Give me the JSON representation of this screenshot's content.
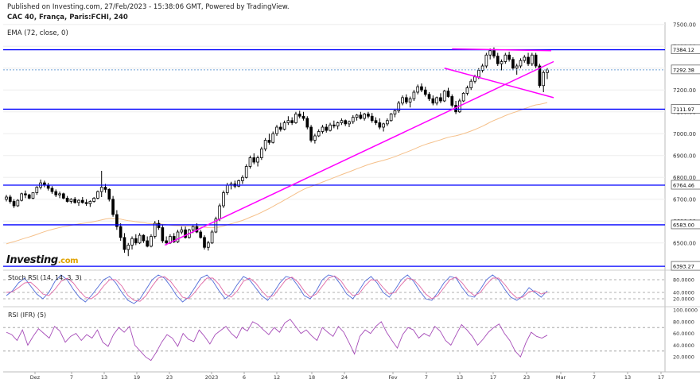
{
  "header": {
    "published": "Published on Investing.com, 27/Feb/2023 - 15:38:06 GMT, Powered by TradingView.",
    "title": "CAC 40, França, Paris:FCHI, 240",
    "ema": "EMA (72, close, 0)"
  },
  "logo": {
    "name": "Investing",
    "suffix": ".com"
  },
  "colors": {
    "up": "#ffffff",
    "down": "#000000",
    "hline": "#0000ff",
    "trend": "#ff00ff",
    "ema": "#f5c08a",
    "stoch_k": "#4f6bd8",
    "stoch_d": "#e066a3",
    "rsi": "#a64cb8",
    "dotted": "#6fa0d8"
  },
  "chart_data": [
    {
      "type": "candlestick",
      "title": "CAC 40, França, Paris:FCHI, 240",
      "ylim": [
        6390,
        7510
      ],
      "y_ticks": [
        "7500.00",
        "7400.00",
        "7300.00",
        "7200.00",
        "7100.00",
        "7000.00",
        "6900.00",
        "6800.00",
        "6700.00",
        "6600.00",
        "6500.00"
      ],
      "x_labels": [
        "Dez",
        "7",
        "13",
        "19",
        "23",
        "2023",
        "6",
        "12",
        "18",
        "24",
        "Fev",
        "7",
        "13",
        "17",
        "23",
        "Mar",
        "7",
        "13",
        "17"
      ],
      "price_lines": [
        "7384.12",
        "7292.38",
        "7111.97",
        "6764.46",
        "6583.00",
        "6393.27"
      ],
      "ohlc": [
        [
          6700,
          6720,
          6690,
          6710
        ],
        [
          6710,
          6720,
          6680,
          6690
        ],
        [
          6690,
          6700,
          6660,
          6670
        ],
        [
          6670,
          6700,
          6665,
          6695
        ],
        [
          6695,
          6730,
          6690,
          6725
        ],
        [
          6725,
          6740,
          6705,
          6720
        ],
        [
          6720,
          6725,
          6700,
          6705
        ],
        [
          6705,
          6730,
          6700,
          6730
        ],
        [
          6730,
          6760,
          6720,
          6755
        ],
        [
          6755,
          6790,
          6745,
          6775
        ],
        [
          6775,
          6785,
          6755,
          6765
        ],
        [
          6765,
          6775,
          6740,
          6750
        ],
        [
          6750,
          6760,
          6725,
          6735
        ],
        [
          6735,
          6745,
          6710,
          6720
        ],
        [
          6720,
          6735,
          6705,
          6725
        ],
        [
          6725,
          6730,
          6700,
          6705
        ],
        [
          6705,
          6715,
          6685,
          6690
        ],
        [
          6690,
          6705,
          6680,
          6700
        ],
        [
          6700,
          6710,
          6680,
          6685
        ],
        [
          6685,
          6700,
          6670,
          6695
        ],
        [
          6695,
          6710,
          6680,
          6685
        ],
        [
          6685,
          6700,
          6670,
          6680
        ],
        [
          6680,
          6695,
          6665,
          6690
        ],
        [
          6690,
          6710,
          6685,
          6705
        ],
        [
          6705,
          6740,
          6700,
          6735
        ],
        [
          6735,
          6830,
          6710,
          6755
        ],
        [
          6755,
          6770,
          6730,
          6745
        ],
        [
          6745,
          6750,
          6690,
          6700
        ],
        [
          6700,
          6715,
          6620,
          6630
        ],
        [
          6630,
          6650,
          6560,
          6575
        ],
        [
          6575,
          6590,
          6510,
          6525
        ],
        [
          6525,
          6545,
          6455,
          6470
        ],
        [
          6470,
          6500,
          6440,
          6490
        ],
        [
          6490,
          6530,
          6470,
          6520
        ],
        [
          6520,
          6540,
          6490,
          6500
        ],
        [
          6500,
          6545,
          6495,
          6535
        ],
        [
          6535,
          6540,
          6500,
          6510
        ],
        [
          6510,
          6530,
          6480,
          6485
        ],
        [
          6485,
          6540,
          6480,
          6530
        ],
        [
          6530,
          6600,
          6520,
          6590
        ],
        [
          6590,
          6605,
          6560,
          6570
        ],
        [
          6570,
          6585,
          6500,
          6510
        ],
        [
          6510,
          6530,
          6490,
          6500
        ],
        [
          6500,
          6540,
          6495,
          6530
        ],
        [
          6530,
          6545,
          6500,
          6505
        ],
        [
          6505,
          6560,
          6500,
          6550
        ],
        [
          6550,
          6575,
          6540,
          6560
        ],
        [
          6560,
          6575,
          6520,
          6525
        ],
        [
          6525,
          6565,
          6520,
          6560
        ],
        [
          6560,
          6580,
          6545,
          6575
        ],
        [
          6575,
          6590,
          6545,
          6550
        ],
        [
          6550,
          6560,
          6520,
          6525
        ],
        [
          6525,
          6535,
          6470,
          6480
        ],
        [
          6480,
          6510,
          6465,
          6500
        ],
        [
          6500,
          6560,
          6495,
          6550
        ],
        [
          6550,
          6620,
          6545,
          6610
        ],
        [
          6610,
          6680,
          6600,
          6670
        ],
        [
          6670,
          6740,
          6660,
          6730
        ],
        [
          6730,
          6775,
          6720,
          6765
        ],
        [
          6765,
          6780,
          6745,
          6770
        ],
        [
          6770,
          6785,
          6750,
          6760
        ],
        [
          6760,
          6790,
          6755,
          6785
        ],
        [
          6785,
          6810,
          6770,
          6800
        ],
        [
          6800,
          6860,
          6795,
          6850
        ],
        [
          6850,
          6900,
          6840,
          6890
        ],
        [
          6890,
          6910,
          6860,
          6870
        ],
        [
          6870,
          6900,
          6850,
          6890
        ],
        [
          6890,
          6940,
          6880,
          6930
        ],
        [
          6930,
          6980,
          6920,
          6970
        ],
        [
          6970,
          7000,
          6950,
          6960
        ],
        [
          6960,
          7010,
          6955,
          7000
        ],
        [
          7000,
          7040,
          6990,
          7030
        ],
        [
          7030,
          7050,
          7010,
          7020
        ],
        [
          7020,
          7060,
          7015,
          7050
        ],
        [
          7050,
          7080,
          7040,
          7060
        ],
        [
          7060,
          7075,
          7040,
          7050
        ],
        [
          7050,
          7100,
          7045,
          7090
        ],
        [
          7090,
          7105,
          7070,
          7080
        ],
        [
          7080,
          7100,
          7060,
          7070
        ],
        [
          7070,
          7080,
          7020,
          7030
        ],
        [
          7030,
          7040,
          6960,
          6970
        ],
        [
          6970,
          7000,
          6955,
          6990
        ],
        [
          6990,
          7020,
          6985,
          7010
        ],
        [
          7010,
          7040,
          7000,
          7030
        ],
        [
          7030,
          7045,
          7005,
          7015
        ],
        [
          7015,
          7050,
          7010,
          7040
        ],
        [
          7040,
          7060,
          7025,
          7035
        ],
        [
          7035,
          7055,
          7020,
          7050
        ],
        [
          7050,
          7070,
          7040,
          7060
        ],
        [
          7060,
          7065,
          7035,
          7045
        ],
        [
          7045,
          7060,
          7030,
          7055
        ],
        [
          7055,
          7085,
          7045,
          7075
        ],
        [
          7075,
          7090,
          7060,
          7085
        ],
        [
          7085,
          7100,
          7065,
          7070
        ],
        [
          7070,
          7095,
          7060,
          7090
        ],
        [
          7090,
          7100,
          7070,
          7080
        ],
        [
          7080,
          7095,
          7050,
          7060
        ],
        [
          7060,
          7075,
          7040,
          7050
        ],
        [
          7050,
          7070,
          7020,
          7030
        ],
        [
          7030,
          7050,
          7010,
          7045
        ],
        [
          7045,
          7070,
          7035,
          7060
        ],
        [
          7060,
          7095,
          7055,
          7090
        ],
        [
          7090,
          7110,
          7075,
          7105
        ],
        [
          7105,
          7150,
          7095,
          7140
        ],
        [
          7140,
          7175,
          7130,
          7165
        ],
        [
          7165,
          7180,
          7135,
          7145
        ],
        [
          7145,
          7170,
          7120,
          7160
        ],
        [
          7160,
          7200,
          7150,
          7190
        ],
        [
          7190,
          7225,
          7180,
          7215
        ],
        [
          7215,
          7230,
          7190,
          7200
        ],
        [
          7200,
          7215,
          7170,
          7180
        ],
        [
          7180,
          7190,
          7150,
          7160
        ],
        [
          7160,
          7175,
          7130,
          7140
        ],
        [
          7140,
          7170,
          7130,
          7165
        ],
        [
          7165,
          7185,
          7140,
          7150
        ],
        [
          7150,
          7200,
          7145,
          7195
        ],
        [
          7195,
          7210,
          7165,
          7170
        ],
        [
          7170,
          7180,
          7120,
          7130
        ],
        [
          7130,
          7150,
          7090,
          7100
        ],
        [
          7100,
          7160,
          7095,
          7150
        ],
        [
          7150,
          7190,
          7145,
          7185
        ],
        [
          7185,
          7220,
          7175,
          7210
        ],
        [
          7210,
          7250,
          7200,
          7240
        ],
        [
          7240,
          7270,
          7230,
          7260
        ],
        [
          7260,
          7300,
          7250,
          7290
        ],
        [
          7290,
          7320,
          7280,
          7310
        ],
        [
          7310,
          7370,
          7300,
          7360
        ],
        [
          7360,
          7390,
          7340,
          7380
        ],
        [
          7380,
          7395,
          7345,
          7355
        ],
        [
          7355,
          7370,
          7310,
          7320
        ],
        [
          7320,
          7340,
          7290,
          7330
        ],
        [
          7330,
          7370,
          7320,
          7360
        ],
        [
          7360,
          7375,
          7330,
          7340
        ],
        [
          7340,
          7350,
          7290,
          7300
        ],
        [
          7300,
          7320,
          7270,
          7310
        ],
        [
          7310,
          7345,
          7300,
          7335
        ],
        [
          7335,
          7360,
          7325,
          7350
        ],
        [
          7350,
          7370,
          7310,
          7320
        ],
        [
          7320,
          7370,
          7310,
          7360
        ],
        [
          7360,
          7370,
          7300,
          7310
        ],
        [
          7310,
          7320,
          7210,
          7220
        ],
        [
          7220,
          7290,
          7190,
          7280
        ],
        [
          7280,
          7300,
          7250,
          7292
        ]
      ],
      "ema": [
        6490,
        6798.6
      ]
    },
    {
      "type": "line",
      "title": "Stoch RSI (14, 14, 3, 3)",
      "ylim": [
        0,
        100
      ],
      "y_ticks": [
        "80.0000",
        "40.0000",
        "20.0000"
      ],
      "series": [
        {
          "name": "%K",
          "values": [
            30,
            45,
            70,
            85,
            60,
            35,
            20,
            40,
            75,
            95,
            80,
            50,
            25,
            10,
            30,
            55,
            80,
            90,
            70,
            40,
            15,
            5,
            20,
            50,
            80,
            95,
            85,
            60,
            30,
            10,
            25,
            55,
            85,
            95,
            75,
            45,
            20,
            35,
            65,
            90,
            80,
            55,
            30,
            15,
            40,
            70,
            90,
            85,
            60,
            30,
            20,
            45,
            80,
            95,
            90,
            65,
            35,
            20,
            45,
            75,
            90,
            70,
            40,
            25,
            50,
            80,
            95,
            75,
            45,
            20,
            15,
            40,
            70,
            90,
            85,
            55,
            30,
            25,
            50,
            80,
            95,
            80,
            50,
            25,
            15,
            30,
            55,
            40,
            25,
            45
          ]
        },
        {
          "name": "%D",
          "values": [
            40,
            42,
            55,
            70,
            72,
            55,
            35,
            30,
            50,
            75,
            85,
            70,
            45,
            25,
            20,
            35,
            60,
            80,
            80,
            60,
            30,
            15,
            12,
            30,
            60,
            85,
            90,
            75,
            50,
            25,
            20,
            40,
            65,
            85,
            85,
            65,
            35,
            25,
            45,
            75,
            85,
            70,
            45,
            25,
            30,
            55,
            80,
            88,
            72,
            45,
            25,
            35,
            60,
            85,
            92,
            78,
            50,
            30,
            35,
            60,
            80,
            78,
            55,
            35,
            40,
            65,
            85,
            80,
            60,
            35,
            20,
            30,
            55,
            80,
            88,
            70,
            45,
            30,
            40,
            65,
            85,
            85,
            65,
            40,
            22,
            25,
            42,
            45,
            35,
            40
          ]
        }
      ]
    },
    {
      "type": "line",
      "title": "RSI (IFR) (5)",
      "ylim": [
        0,
        100
      ],
      "y_ticks": [
        "100.0000",
        "80.0000",
        "60.0000",
        "40.0000",
        "20.0000"
      ],
      "series": [
        {
          "values": [
            62,
            58,
            48,
            66,
            40,
            55,
            68,
            60,
            52,
            72,
            64,
            45,
            55,
            60,
            48,
            58,
            52,
            66,
            45,
            38,
            58,
            70,
            62,
            72,
            40,
            30,
            20,
            14,
            28,
            45,
            58,
            52,
            38,
            60,
            50,
            46,
            66,
            55,
            42,
            58,
            65,
            72,
            60,
            52,
            70,
            64,
            80,
            75,
            66,
            58,
            70,
            62,
            78,
            84,
            72,
            60,
            66,
            56,
            48,
            70,
            62,
            55,
            72,
            62,
            44,
            25,
            55,
            66,
            60,
            72,
            80,
            62,
            48,
            35,
            58,
            70,
            66,
            52,
            60,
            55,
            72,
            64,
            48,
            40,
            58,
            75,
            66,
            55,
            40,
            50,
            62,
            70,
            76,
            60,
            48,
            30,
            20,
            44,
            62,
            55,
            52,
            57
          ]
        }
      ]
    }
  ]
}
